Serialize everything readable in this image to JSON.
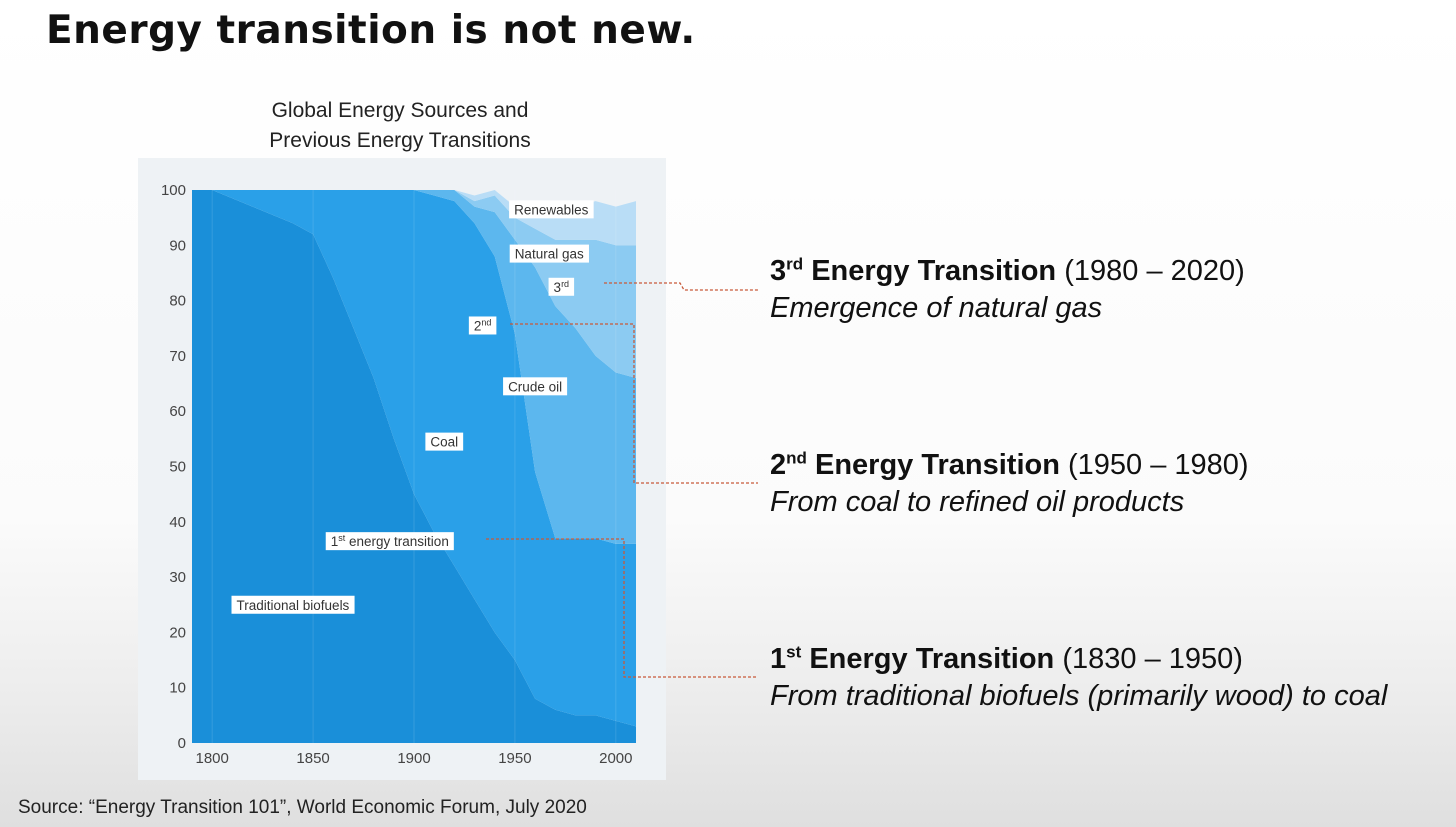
{
  "slide": {
    "title": "Energy transition is not new.",
    "source": "Source: “Energy Transition 101”, World Economic Forum, July 2020"
  },
  "chart_data": {
    "type": "area",
    "title_line1": "Global Energy Sources and",
    "title_line2": "Previous Energy Transitions",
    "xlabel": "",
    "ylabel": "",
    "xlim": [
      1790,
      2010
    ],
    "ylim": [
      0,
      100
    ],
    "x_ticks": [
      1800,
      1850,
      1900,
      1950,
      2000
    ],
    "y_ticks": [
      0,
      10,
      20,
      30,
      40,
      50,
      60,
      70,
      80,
      90,
      100
    ],
    "stacked": true,
    "x": [
      1790,
      1800,
      1820,
      1840,
      1850,
      1860,
      1870,
      1880,
      1890,
      1900,
      1910,
      1920,
      1930,
      1940,
      1950,
      1960,
      1970,
      1980,
      1990,
      2000,
      2010
    ],
    "series": [
      {
        "name": "Traditional biofuels",
        "color": "#1a8fd9",
        "values": [
          100,
          100,
          97,
          94,
          92,
          84,
          75,
          66,
          55,
          45,
          38,
          32,
          26,
          20,
          15,
          8,
          6,
          5,
          5,
          4,
          3
        ]
      },
      {
        "name": "Coal",
        "color": "#2aa0e8",
        "values": [
          0,
          0,
          3,
          6,
          8,
          16,
          25,
          34,
          45,
          55,
          61,
          66,
          68,
          68,
          59,
          41,
          31,
          32,
          32,
          32,
          33
        ]
      },
      {
        "name": "Crude oil",
        "color": "#5cb7ee",
        "values": [
          0,
          0,
          0,
          0,
          0,
          0,
          0,
          0,
          0,
          0,
          1,
          2,
          3,
          8,
          17,
          37,
          42,
          38,
          33,
          31,
          30
        ]
      },
      {
        "name": "Natural gas",
        "color": "#8ccbf2",
        "values": [
          0,
          0,
          0,
          0,
          0,
          0,
          0,
          0,
          0,
          0,
          0,
          0,
          1,
          3,
          4,
          7,
          12,
          16,
          21,
          23,
          24
        ]
      },
      {
        "name": "Renewables",
        "color": "#b9ddf6",
        "values": [
          0,
          0,
          0,
          0,
          0,
          0,
          0,
          0,
          0,
          0,
          0,
          0,
          1,
          1,
          2,
          3,
          4,
          6,
          7,
          7,
          8
        ]
      }
    ],
    "area_labels": [
      {
        "text": "Renewables",
        "x": 1968,
        "y": 96.5
      },
      {
        "text": "Natural gas",
        "x": 1967,
        "y": 88.5
      },
      {
        "text": "3rd",
        "x": 1973,
        "y": 82.5
      },
      {
        "text": "2nd",
        "x": 1934,
        "y": 75.5
      },
      {
        "text": "Crude oil",
        "x": 1960,
        "y": 64.5
      },
      {
        "text": "Coal",
        "x": 1915,
        "y": 54.5
      },
      {
        "text": "1st energy transition",
        "x": 1888,
        "y": 36.5
      },
      {
        "text": "Traditional biofuels",
        "x": 1840,
        "y": 25
      }
    ]
  },
  "callouts": [
    {
      "ordinal": "3",
      "suffix": "rd",
      "label": "Energy Transition",
      "period": "(1980 – 2020)",
      "desc": "Emergence of natural gas"
    },
    {
      "ordinal": "2",
      "suffix": "nd",
      "label": "Energy Transition",
      "period": "(1950 – 1980)",
      "desc": "From coal to refined oil products"
    },
    {
      "ordinal": "1",
      "suffix": "st",
      "label": "Energy Transition",
      "period": "(1830 – 1950)",
      "desc": "From traditional biofuels (primarily wood) to coal"
    }
  ],
  "colors": {
    "connector": "#c85a3a",
    "panel": "#eef2f5"
  }
}
